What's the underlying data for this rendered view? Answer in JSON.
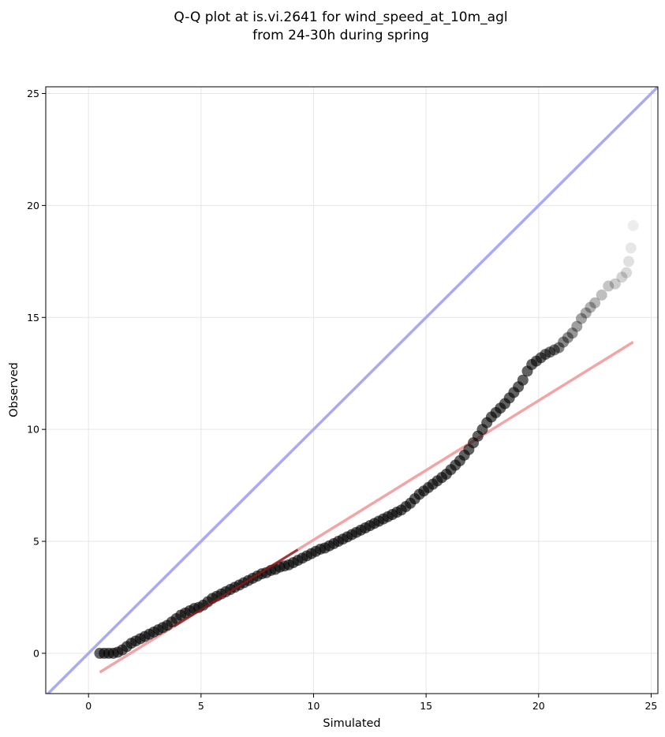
{
  "chart_data": {
    "type": "scatter",
    "title": "Q-Q plot at is.vi.2641 for wind_speed_at_10m_agl",
    "subtitle": "from 24-30h during spring",
    "xlabel": "Simulated",
    "ylabel": "Observed",
    "xlim": [
      -1.9,
      25.3
    ],
    "ylim": [
      -1.8,
      25.3
    ],
    "xticks": [
      0,
      5,
      10,
      15,
      20,
      25
    ],
    "yticks": [
      0,
      5,
      10,
      15,
      20,
      25
    ],
    "grid": true,
    "colors": {
      "points": "#000000",
      "identity_line": "#a8aaf5",
      "fit_line": "#f3a5a5",
      "fit_line_overlap": "#8b1a1a",
      "grid": "#e6e6e6"
    },
    "identity_line": {
      "x": [
        -1.9,
        25.3
      ],
      "y": [
        -1.9,
        25.3
      ]
    },
    "fit_line": {
      "x": [
        0.5,
        24.2
      ],
      "y": [
        -0.85,
        13.9
      ]
    },
    "quantile_points": {
      "x": [
        0.5,
        0.7,
        0.9,
        1.1,
        1.3,
        1.5,
        1.7,
        1.9,
        2.1,
        2.3,
        2.5,
        2.7,
        2.9,
        3.1,
        3.3,
        3.5,
        3.7,
        3.9,
        4.1,
        4.3,
        4.5,
        4.7,
        4.9,
        5.1,
        5.3,
        5.5,
        5.7,
        5.9,
        6.1,
        6.3,
        6.5,
        6.7,
        6.9,
        7.1,
        7.3,
        7.5,
        7.7,
        7.9,
        8.1,
        8.3,
        8.5,
        8.7,
        8.9,
        9.1,
        9.3,
        9.5,
        9.7,
        9.9,
        10.1,
        10.3,
        10.5,
        10.7,
        10.9,
        11.1,
        11.3,
        11.5,
        11.7,
        11.9,
        12.1,
        12.3,
        12.5,
        12.7,
        12.9,
        13.1,
        13.3,
        13.5,
        13.7,
        13.9,
        14.1,
        14.3,
        14.5,
        14.7,
        14.9,
        15.1,
        15.3,
        15.5,
        15.7,
        15.9,
        16.1,
        16.3,
        16.5,
        16.7,
        16.9,
        17.1,
        17.3,
        17.5,
        17.7,
        17.9,
        18.1,
        18.3,
        18.5,
        18.7,
        18.9,
        19.1,
        19.3,
        19.5,
        19.7,
        19.9,
        20.1,
        20.3,
        20.5,
        20.7,
        20.9,
        21.1,
        21.3,
        21.5,
        21.7,
        21.9,
        22.1,
        22.3,
        22.5,
        22.8,
        23.1,
        23.4,
        23.7,
        23.9,
        24.0,
        24.1,
        24.2
      ],
      "y": [
        0.0,
        0.0,
        0.0,
        0.0,
        0.05,
        0.15,
        0.3,
        0.45,
        0.55,
        0.65,
        0.75,
        0.85,
        0.95,
        1.05,
        1.15,
        1.25,
        1.4,
        1.55,
        1.7,
        1.8,
        1.9,
        2.0,
        2.05,
        2.15,
        2.3,
        2.45,
        2.55,
        2.65,
        2.75,
        2.85,
        2.95,
        3.05,
        3.15,
        3.25,
        3.35,
        3.45,
        3.55,
        3.6,
        3.7,
        3.75,
        3.85,
        3.9,
        3.95,
        4.05,
        4.15,
        4.25,
        4.35,
        4.45,
        4.55,
        4.65,
        4.7,
        4.8,
        4.9,
        5.0,
        5.1,
        5.2,
        5.3,
        5.4,
        5.5,
        5.6,
        5.7,
        5.8,
        5.9,
        6.0,
        6.1,
        6.2,
        6.3,
        6.4,
        6.55,
        6.7,
        6.9,
        7.1,
        7.25,
        7.4,
        7.55,
        7.7,
        7.85,
        8.0,
        8.2,
        8.4,
        8.6,
        8.85,
        9.1,
        9.4,
        9.7,
        10.0,
        10.3,
        10.55,
        10.75,
        10.95,
        11.15,
        11.4,
        11.65,
        11.9,
        12.2,
        12.6,
        12.9,
        13.05,
        13.2,
        13.35,
        13.45,
        13.55,
        13.65,
        13.9,
        14.1,
        14.3,
        14.6,
        14.95,
        15.2,
        15.45,
        15.65,
        16.0,
        16.4,
        16.5,
        16.8,
        17.0,
        17.5,
        18.1,
        19.1
      ]
    }
  }
}
